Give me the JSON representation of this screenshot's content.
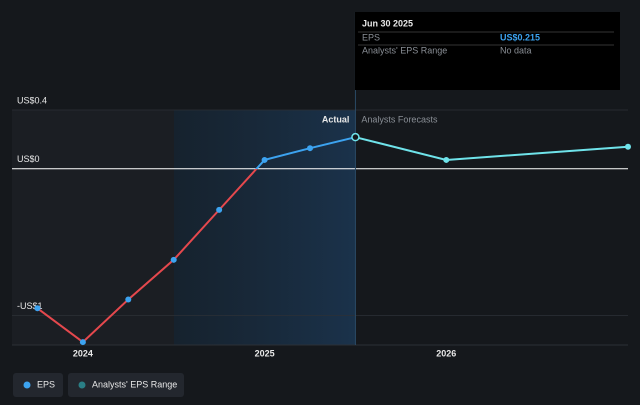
{
  "chart_data": {
    "type": "line",
    "x": [
      2023.75,
      2024,
      2024.25,
      2024.5,
      2024.75,
      2025,
      2025.25,
      2025.5,
      2026,
      2027
    ],
    "series": [
      {
        "name": "Actual",
        "color": "#3ca3f0",
        "negative_color": "#e5484d",
        "values": [
          -0.95,
          -1.18,
          -0.89,
          -0.62,
          -0.28,
          0.06,
          0.14,
          0.215,
          null,
          null
        ]
      },
      {
        "name": "Analysts Forecasts",
        "color": "#6fe3ea",
        "values": [
          null,
          null,
          null,
          null,
          null,
          null,
          null,
          0.215,
          0.06,
          0.15
        ]
      }
    ],
    "xlim": [
      2023.61,
      2027
    ],
    "xticks": [
      2024,
      2025,
      2026
    ],
    "ylim": [
      -1.2,
      0.4
    ],
    "yticks": [
      {
        "value": 0.4,
        "label": "US$0.4"
      },
      {
        "value": 0,
        "label": "US$0"
      },
      {
        "value": -1,
        "label": "-US$1"
      }
    ],
    "legend": [
      "EPS",
      "Analysts' EPS Range"
    ],
    "tooltip": {
      "date": "Jun 30 2025",
      "rows": [
        {
          "label": "EPS",
          "value": "US$0.215"
        },
        {
          "label": "Analysts' EPS Range",
          "value": "No data"
        }
      ]
    }
  }
}
